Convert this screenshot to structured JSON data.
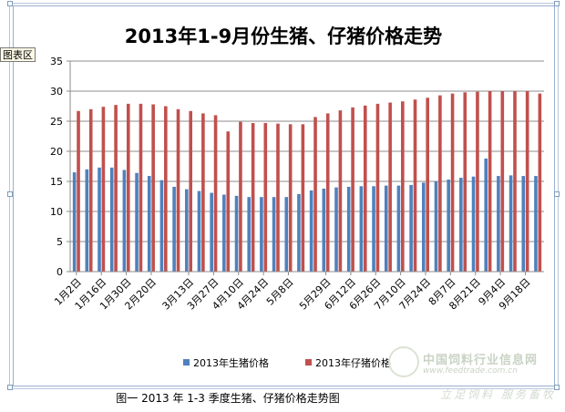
{
  "tooltip": "图表区",
  "caption": "图一 2013 年  1-3 季度生猪、仔猪价格走势图",
  "watermark": {
    "name": "中国饲料行业信息网",
    "url": "www.feedtrade.com.cn",
    "slogan": "立足饲料  服务畜牧"
  },
  "chart_data": {
    "type": "bar",
    "title": "2013年1-9月份生猪、仔猪价格走势",
    "xlabel": "",
    "ylabel": "",
    "ylim": [
      0,
      35
    ],
    "yticks": [
      0,
      5,
      10,
      15,
      20,
      25,
      30,
      35
    ],
    "grid": true,
    "legend_position": "bottom",
    "categories": [
      "1月2日",
      "1月9日",
      "1月16日",
      "1月23日",
      "1月30日",
      "2月6日",
      "2月20日",
      "2月27日",
      "3月6日",
      "3月13日",
      "3月20日",
      "3月27日",
      "4月3日",
      "4月10日",
      "4月17日",
      "4月24日",
      "5月1日",
      "5月8日",
      "5月15日",
      "5月22日",
      "5月29日",
      "6月5日",
      "6月12日",
      "6月19日",
      "6月26日",
      "7月3日",
      "7月10日",
      "7月17日",
      "7月24日",
      "7月31日",
      "8月7日",
      "8月14日",
      "8月21日",
      "8月28日",
      "9月4日",
      "9月11日",
      "9月18日",
      "9月25日"
    ],
    "visible_tick_labels": [
      "1月2日",
      "1月16日",
      "1月30日",
      "2月20日",
      "3月13日",
      "3月27日",
      "4月10日",
      "4月24日",
      "5月8日",
      "5月29日",
      "6月12日",
      "6月26日",
      "7月10日",
      "7月24日",
      "8月7日",
      "8月21日",
      "9月4日",
      "9月18日"
    ],
    "series": [
      {
        "name": "2013年生猪价格",
        "color": "#4f81bd",
        "values": [
          16.5,
          17.0,
          17.3,
          17.3,
          16.9,
          16.4,
          15.9,
          15.2,
          14.1,
          13.7,
          13.4,
          13.1,
          12.8,
          12.6,
          12.4,
          12.4,
          12.4,
          12.4,
          12.9,
          13.5,
          13.8,
          14.0,
          14.1,
          14.2,
          14.2,
          14.3,
          14.3,
          14.4,
          14.8,
          15.0,
          15.3,
          15.6,
          15.8,
          18.8,
          15.9,
          16.0,
          15.9,
          15.9
        ]
      },
      {
        "name": "2013年仔猪价格",
        "color": "#c0504d",
        "values": [
          26.7,
          27.0,
          27.4,
          27.7,
          27.9,
          27.9,
          27.8,
          27.5,
          27.0,
          26.7,
          26.3,
          26.0,
          23.3,
          24.9,
          24.7,
          24.7,
          24.6,
          24.5,
          24.5,
          25.7,
          26.3,
          26.8,
          27.3,
          27.6,
          27.9,
          28.1,
          28.3,
          28.6,
          28.9,
          29.3,
          29.6,
          29.8,
          29.9,
          30.0,
          30.0,
          30.0,
          30.0,
          29.6
        ]
      }
    ]
  }
}
